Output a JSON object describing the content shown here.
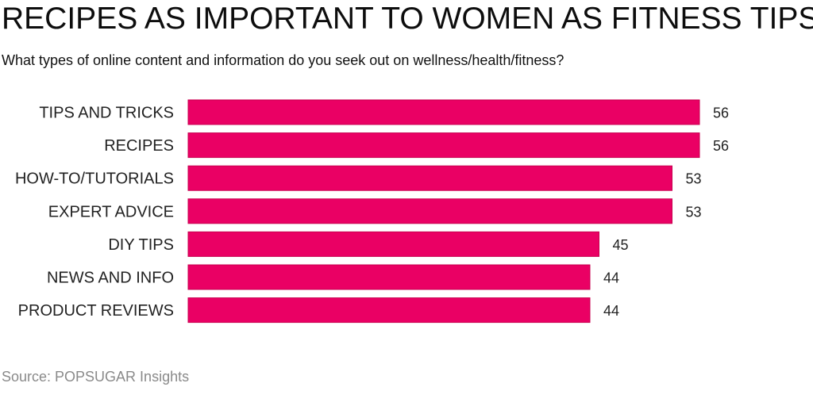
{
  "header": {
    "title": "RECIPES AS IMPORTANT TO WOMEN AS FITNESS TIPS",
    "subtitle": "What types of online content and information do you seek out on wellness/health/fitness?"
  },
  "footer": {
    "source": "Source: POPSUGAR Insights"
  },
  "colors": {
    "bar": "#ea0064",
    "bar_border": "#c8004f",
    "label": "#222222",
    "value": "#222222"
  },
  "chart_data": {
    "type": "bar",
    "orientation": "horizontal",
    "title": "RECIPES AS IMPORTANT TO WOMEN AS FITNESS TIPS",
    "subtitle": "What types of online content and information do you seek out on wellness/health/fitness?",
    "categories": [
      "TIPS AND TRICKS",
      "RECIPES",
      "HOW-TO/TUTORIALS",
      "EXPERT ADVICE",
      "DIY TIPS",
      "NEWS AND INFO",
      "PRODUCT REVIEWS"
    ],
    "values": [
      56,
      56,
      53,
      53,
      45,
      44,
      44
    ],
    "xlabel": "",
    "ylabel": "",
    "data_labels": true,
    "grid": false,
    "legend": "none"
  }
}
